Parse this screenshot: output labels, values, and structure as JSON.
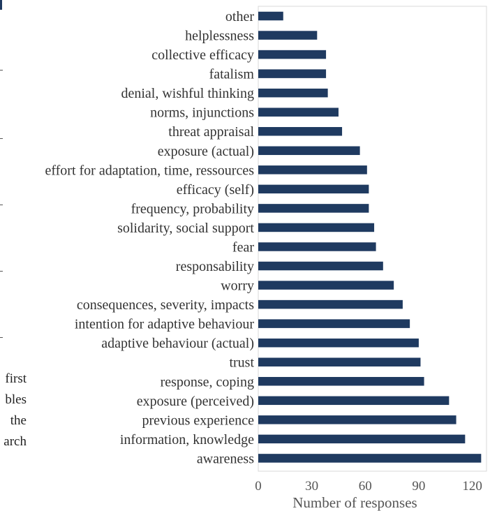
{
  "left_fragment": {
    "words": [
      "first",
      "bles",
      "the",
      "arch"
    ]
  },
  "chart_data": {
    "type": "bar",
    "orientation": "horizontal",
    "categories": [
      "other",
      "helplessness",
      "collective efficacy",
      "fatalism",
      "denial, wishful thinking",
      "norms, injunctions",
      "threat appraisal",
      "exposure (actual)",
      "effort for adaptation, time, ressources",
      "efficacy (self)",
      "frequency, probability",
      "solidarity, social support",
      "fear",
      "responsability",
      "worry",
      "consequences, severity, impacts",
      "intention for adaptive behaviour",
      "adaptive behaviour (actual)",
      "trust",
      "response, coping",
      "exposure (perceived)",
      "previous experience",
      "information, knowledge",
      "awareness"
    ],
    "values": [
      14,
      33,
      38,
      38,
      39,
      45,
      47,
      57,
      61,
      62,
      62,
      65,
      66,
      70,
      76,
      81,
      85,
      90,
      91,
      93,
      107,
      111,
      116,
      125
    ],
    "xlabel": "Number of responses",
    "ylabel": "",
    "title": "",
    "xlim": [
      0,
      128
    ],
    "xticks": [
      0,
      30,
      60,
      90,
      120
    ],
    "grid": false,
    "bar_color": "#1f3a60",
    "border_color": "#d9d9d9"
  }
}
